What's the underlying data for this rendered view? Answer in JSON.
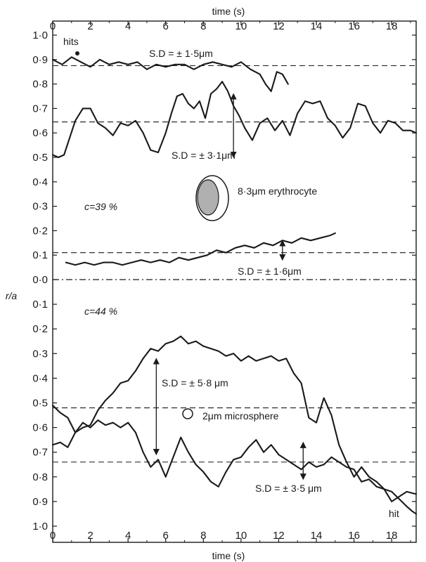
{
  "chart_data": {
    "type": "line",
    "x_axis": {
      "label": "time (s)",
      "range": [
        0,
        19.3
      ],
      "ticks": [
        0,
        2,
        4,
        6,
        8,
        10,
        12,
        14,
        16,
        18
      ],
      "tick_labels": [
        "0",
        "2",
        "4",
        "6",
        "8",
        "10",
        "12",
        "14",
        "16",
        "18"
      ]
    },
    "y_axis": {
      "label": "r/a",
      "upper_panel": {
        "range": [
          0,
          1.0
        ],
        "ticks": [
          1.0,
          0.9,
          0.8,
          0.7,
          0.6,
          0.5,
          0.4,
          0.3,
          0.2,
          0.1,
          0.0
        ],
        "tick_labels": [
          "1·0",
          "0·9",
          "0·8",
          "0·7",
          "0·6",
          "0·5",
          "0·4",
          "0·3",
          "0·2",
          "0·1",
          "0·0"
        ]
      },
      "lower_panel": {
        "range": [
          0,
          1.0
        ],
        "inverted": true,
        "ticks": [
          0.1,
          0.2,
          0.3,
          0.4,
          0.5,
          0.6,
          0.7,
          0.8,
          0.9,
          1.0
        ],
        "tick_labels": [
          "0·1",
          "0·2",
          "0·3",
          "0·4",
          "0·5",
          "0·6",
          "0·7",
          "0·8",
          "0·9",
          "1·0"
        ]
      }
    },
    "grid": false,
    "panels": [
      {
        "annotation": "c=39 %",
        "particle_label": "8·3μm erythrocyte",
        "series": [
          {
            "mean": 0.875,
            "sd_label": "S.D = ± 1·5μm",
            "x": [
              0,
              0.5,
              1.0,
              1.5,
              2.0,
              2.5,
              3.0,
              3.5,
              4.0,
              4.5,
              5.0,
              5.5,
              6.0,
              6.5,
              7.0,
              7.5,
              8.0,
              8.5,
              9.0,
              9.5,
              10.0,
              10.5,
              11.0,
              11.3,
              11.6,
              11.9,
              12.2,
              12.5
            ],
            "y": [
              0.9,
              0.88,
              0.91,
              0.89,
              0.87,
              0.9,
              0.88,
              0.89,
              0.88,
              0.89,
              0.86,
              0.88,
              0.87,
              0.88,
              0.88,
              0.86,
              0.88,
              0.89,
              0.88,
              0.87,
              0.89,
              0.86,
              0.84,
              0.8,
              0.77,
              0.85,
              0.84,
              0.8
            ]
          },
          {
            "mean": 0.645,
            "sd_label": "S.D = ± 3·1μm",
            "x": [
              0,
              0.3,
              0.6,
              0.9,
              1.2,
              1.6,
              2.0,
              2.4,
              2.8,
              3.2,
              3.6,
              4.0,
              4.4,
              4.8,
              5.2,
              5.6,
              6.0,
              6.3,
              6.6,
              6.9,
              7.2,
              7.5,
              7.8,
              8.1,
              8.4,
              8.7,
              9.0,
              9.3,
              9.6,
              9.9,
              10.2,
              10.6,
              11.0,
              11.4,
              11.8,
              12.2,
              12.6,
              13.0,
              13.4,
              13.8,
              14.2,
              14.6,
              15.0,
              15.4,
              15.8,
              16.2,
              16.6,
              17.0,
              17.4,
              17.8,
              18.2,
              18.6,
              19.0,
              19.3
            ],
            "y": [
              0.51,
              0.5,
              0.51,
              0.58,
              0.65,
              0.7,
              0.7,
              0.64,
              0.62,
              0.59,
              0.64,
              0.63,
              0.65,
              0.6,
              0.53,
              0.52,
              0.6,
              0.68,
              0.75,
              0.76,
              0.72,
              0.7,
              0.73,
              0.66,
              0.76,
              0.78,
              0.81,
              0.77,
              0.71,
              0.67,
              0.62,
              0.57,
              0.64,
              0.66,
              0.61,
              0.65,
              0.59,
              0.68,
              0.73,
              0.72,
              0.73,
              0.66,
              0.63,
              0.58,
              0.62,
              0.72,
              0.71,
              0.64,
              0.6,
              0.65,
              0.64,
              0.61,
              0.61,
              0.6
            ]
          },
          {
            "mean": 0.11,
            "sd_label": "S.D = ± 1·6μm",
            "x": [
              0.7,
              1.2,
              1.7,
              2.2,
              2.7,
              3.2,
              3.7,
              4.2,
              4.7,
              5.2,
              5.7,
              6.2,
              6.7,
              7.2,
              7.7,
              8.2,
              8.7,
              9.2,
              9.7,
              10.2,
              10.7,
              11.2,
              11.7,
              12.2,
              12.7,
              13.2,
              13.7,
              14.2,
              14.7,
              15.0
            ],
            "y": [
              0.07,
              0.06,
              0.07,
              0.06,
              0.07,
              0.07,
              0.06,
              0.07,
              0.08,
              0.07,
              0.08,
              0.07,
              0.09,
              0.08,
              0.09,
              0.1,
              0.12,
              0.11,
              0.13,
              0.14,
              0.13,
              0.15,
              0.14,
              0.16,
              0.15,
              0.17,
              0.16,
              0.17,
              0.18,
              0.19
            ]
          }
        ]
      },
      {
        "annotation": "c=44 %",
        "particle_label": "2μm microsphere",
        "series": [
          {
            "mean": 0.52,
            "sd_label": "S.D = ± 5·8 μm",
            "x": [
              0,
              0.4,
              0.8,
              1.2,
              1.6,
              2.0,
              2.4,
              2.8,
              3.2,
              3.6,
              4.0,
              4.4,
              4.8,
              5.2,
              5.6,
              6.0,
              6.4,
              6.8,
              7.2,
              7.6,
              8.0,
              8.4,
              8.8,
              9.2,
              9.6,
              10.0,
              10.4,
              10.8,
              11.2,
              11.6,
              12.0,
              12.4,
              12.8,
              13.2,
              13.6,
              14.0,
              14.4,
              14.8,
              15.2,
              15.6,
              16.0,
              16.4,
              16.8,
              17.2,
              17.6,
              18.0,
              18.4,
              18.8,
              19.3
            ],
            "y": [
              0.51,
              0.54,
              0.56,
              0.62,
              0.6,
              0.59,
              0.53,
              0.49,
              0.46,
              0.42,
              0.41,
              0.37,
              0.32,
              0.28,
              0.29,
              0.26,
              0.25,
              0.23,
              0.26,
              0.25,
              0.27,
              0.28,
              0.29,
              0.31,
              0.3,
              0.33,
              0.31,
              0.33,
              0.32,
              0.31,
              0.33,
              0.32,
              0.38,
              0.42,
              0.56,
              0.58,
              0.48,
              0.55,
              0.67,
              0.74,
              0.8,
              0.76,
              0.8,
              0.82,
              0.85,
              0.9,
              0.88,
              0.86,
              0.87
            ]
          },
          {
            "mean": 0.74,
            "sd_label": "S.D = ± 3·5 μm",
            "x": [
              0,
              0.4,
              0.8,
              1.2,
              1.6,
              2.0,
              2.4,
              2.8,
              3.2,
              3.6,
              4.0,
              4.4,
              4.8,
              5.2,
              5.6,
              6.0,
              6.4,
              6.8,
              7.2,
              7.6,
              8.0,
              8.4,
              8.8,
              9.2,
              9.6,
              10.0,
              10.4,
              10.8,
              11.2,
              11.6,
              12.0,
              12.4,
              12.8,
              13.2,
              13.6,
              14.0,
              14.4,
              14.8,
              15.2,
              15.6,
              16.0,
              16.4,
              16.8,
              17.2,
              17.6,
              18.0,
              18.4,
              18.8,
              19.1,
              19.3
            ],
            "y": [
              0.67,
              0.66,
              0.68,
              0.62,
              0.58,
              0.6,
              0.57,
              0.59,
              0.58,
              0.6,
              0.58,
              0.62,
              0.7,
              0.76,
              0.73,
              0.8,
              0.72,
              0.64,
              0.7,
              0.75,
              0.78,
              0.82,
              0.84,
              0.78,
              0.73,
              0.72,
              0.68,
              0.65,
              0.7,
              0.67,
              0.71,
              0.73,
              0.75,
              0.77,
              0.74,
              0.76,
              0.75,
              0.72,
              0.74,
              0.76,
              0.77,
              0.82,
              0.81,
              0.84,
              0.85,
              0.86,
              0.89,
              0.92,
              0.94,
              0.95
            ]
          }
        ]
      }
    ],
    "annotations": {
      "hits": "hits",
      "hit": "hit"
    }
  }
}
